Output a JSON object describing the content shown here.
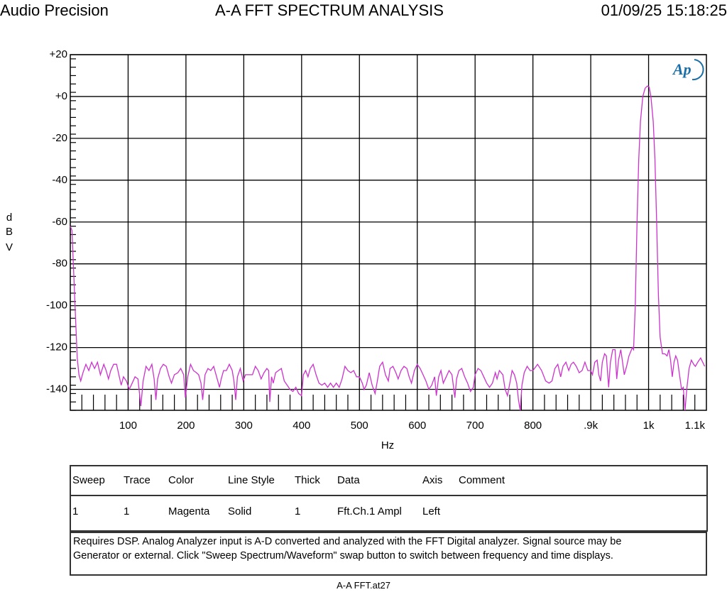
{
  "header": {
    "brand": "Audio Precision",
    "title": "A-A FFT SPECTRUM ANALYSIS",
    "timestamp": "01/09/25 15:18:25"
  },
  "logo_text": "Ap",
  "colors": {
    "trace": "#cc33cc",
    "grid": "#000000",
    "logo": "#1a6fa8"
  },
  "chart_data": {
    "type": "line",
    "title": "A-A FFT SPECTRUM ANALYSIS",
    "xlabel": "Hz",
    "ylabel": [
      "d",
      "B",
      "V"
    ],
    "xlim": [
      0,
      1100
    ],
    "ylim": [
      -150,
      20
    ],
    "grid": true,
    "x_ticks": [
      100,
      200,
      300,
      400,
      500,
      600,
      700,
      800,
      900,
      1000,
      1100
    ],
    "x_tick_labels": [
      "100",
      "200",
      "300",
      "400",
      "500",
      "600",
      "700",
      "800",
      ".9k",
      "1k",
      "1.1k"
    ],
    "y_ticks": [
      20,
      0,
      -20,
      -40,
      -60,
      -80,
      -100,
      -120,
      -140
    ],
    "y_tick_labels": [
      "+20",
      "+0",
      "-20",
      "-40",
      "-60",
      "-80",
      "-100",
      "-120",
      "-140"
    ],
    "series": [
      {
        "color": "Magenta",
        "points": [
          [
            0,
            -62
          ],
          [
            3,
            -64
          ],
          [
            6,
            -85
          ],
          [
            9,
            -105
          ],
          [
            12,
            -125
          ],
          [
            15,
            -133
          ],
          [
            18,
            -136
          ],
          [
            22,
            -132
          ],
          [
            27,
            -128
          ],
          [
            32,
            -131
          ],
          [
            37,
            -127
          ],
          [
            42,
            -130
          ],
          [
            47,
            -127
          ],
          [
            52,
            -133
          ],
          [
            58,
            -128
          ],
          [
            62,
            -131
          ],
          [
            66,
            -135
          ],
          [
            70,
            -131
          ],
          [
            75,
            -128
          ],
          [
            80,
            -128
          ],
          [
            84,
            -133
          ],
          [
            88,
            -138
          ],
          [
            92,
            -134
          ],
          [
            97,
            -136
          ],
          [
            102,
            -140
          ],
          [
            107,
            -137
          ],
          [
            112,
            -134
          ],
          [
            117,
            -135
          ],
          [
            122,
            -148
          ],
          [
            126,
            -136
          ],
          [
            131,
            -129
          ],
          [
            136,
            -131
          ],
          [
            141,
            -128
          ],
          [
            145,
            -135
          ],
          [
            148,
            -145
          ],
          [
            151,
            -135
          ],
          [
            156,
            -130
          ],
          [
            161,
            -128
          ],
          [
            166,
            -129
          ],
          [
            171,
            -134
          ],
          [
            175,
            -137
          ],
          [
            180,
            -133
          ],
          [
            186,
            -132
          ],
          [
            191,
            -130
          ],
          [
            196,
            -133
          ],
          [
            199,
            -144
          ],
          [
            203,
            -134
          ],
          [
            208,
            -128
          ],
          [
            213,
            -131
          ],
          [
            218,
            -132
          ],
          [
            222,
            -133
          ],
          [
            226,
            -137
          ],
          [
            229,
            -145
          ],
          [
            233,
            -133
          ],
          [
            238,
            -130
          ],
          [
            243,
            -131
          ],
          [
            248,
            -129
          ],
          [
            253,
            -134
          ],
          [
            258,
            -139
          ],
          [
            261,
            -135
          ],
          [
            265,
            -131
          ],
          [
            270,
            -131
          ],
          [
            275,
            -128
          ],
          [
            280,
            -131
          ],
          [
            283,
            -136
          ],
          [
            286,
            -145
          ],
          [
            289,
            -134
          ],
          [
            294,
            -130
          ],
          [
            299,
            -136
          ],
          [
            303,
            -133
          ],
          [
            309,
            -133
          ],
          [
            315,
            -133
          ],
          [
            320,
            -129
          ],
          [
            325,
            -131
          ],
          [
            330,
            -135
          ],
          [
            335,
            -132
          ],
          [
            340,
            -130
          ],
          [
            343,
            -131
          ],
          [
            345,
            -146
          ],
          [
            348,
            -134
          ],
          [
            351,
            -137
          ],
          [
            355,
            -132
          ],
          [
            360,
            -131
          ],
          [
            365,
            -130
          ],
          [
            370,
            -136
          ],
          [
            375,
            -138
          ],
          [
            380,
            -140
          ],
          [
            385,
            -141
          ],
          [
            390,
            -139
          ],
          [
            395,
            -142
          ],
          [
            400,
            -143
          ],
          [
            403,
            -133
          ],
          [
            407,
            -131
          ],
          [
            411,
            -134
          ],
          [
            415,
            -130
          ],
          [
            420,
            -128
          ],
          [
            425,
            -133
          ],
          [
            430,
            -137
          ],
          [
            435,
            -138
          ],
          [
            440,
            -137
          ],
          [
            445,
            -139
          ],
          [
            450,
            -137
          ],
          [
            455,
            -139
          ],
          [
            460,
            -137
          ],
          [
            465,
            -139
          ],
          [
            470,
            -135
          ],
          [
            475,
            -129
          ],
          [
            480,
            -131
          ],
          [
            485,
            -132
          ],
          [
            490,
            -131
          ],
          [
            495,
            -134
          ],
          [
            500,
            -134
          ],
          [
            505,
            -137
          ],
          [
            508,
            -140
          ],
          [
            512,
            -138
          ],
          [
            517,
            -132
          ],
          [
            522,
            -138
          ],
          [
            527,
            -142
          ],
          [
            531,
            -136
          ],
          [
            535,
            -129
          ],
          [
            540,
            -127
          ],
          [
            545,
            -133
          ],
          [
            550,
            -136
          ],
          [
            553,
            -130
          ],
          [
            558,
            -129
          ],
          [
            563,
            -132
          ],
          [
            567,
            -135
          ],
          [
            572,
            -131
          ],
          [
            577,
            -129
          ],
          [
            582,
            -130
          ],
          [
            586,
            -134
          ],
          [
            590,
            -137
          ],
          [
            595,
            -131
          ],
          [
            600,
            -128
          ],
          [
            605,
            -130
          ],
          [
            610,
            -133
          ],
          [
            615,
            -136
          ],
          [
            620,
            -140
          ],
          [
            625,
            -138
          ],
          [
            630,
            -134
          ],
          [
            633,
            -143
          ],
          [
            637,
            -134
          ],
          [
            641,
            -131
          ],
          [
            645,
            -137
          ],
          [
            650,
            -134
          ],
          [
            655,
            -131
          ],
          [
            660,
            -133
          ],
          [
            665,
            -144
          ],
          [
            668,
            -135
          ],
          [
            672,
            -131
          ],
          [
            677,
            -130
          ],
          [
            682,
            -134
          ],
          [
            687,
            -137
          ],
          [
            692,
            -141
          ],
          [
            697,
            -139
          ],
          [
            700,
            -133
          ],
          [
            705,
            -130
          ],
          [
            710,
            -131
          ],
          [
            715,
            -134
          ],
          [
            720,
            -137
          ],
          [
            725,
            -139
          ],
          [
            730,
            -137
          ],
          [
            735,
            -132
          ],
          [
            738,
            -135
          ],
          [
            742,
            -131
          ],
          [
            748,
            -133
          ],
          [
            752,
            -140
          ],
          [
            756,
            -143
          ],
          [
            760,
            -137
          ],
          [
            764,
            -131
          ],
          [
            768,
            -133
          ],
          [
            772,
            -137
          ],
          [
            775,
            -145
          ],
          [
            778,
            -150
          ],
          [
            781,
            -138
          ],
          [
            785,
            -132
          ],
          [
            790,
            -129
          ],
          [
            795,
            -131
          ],
          [
            800,
            -131
          ],
          [
            808,
            -128
          ],
          [
            815,
            -131
          ],
          [
            822,
            -136
          ],
          [
            828,
            -137
          ],
          [
            833,
            -136
          ],
          [
            838,
            -130
          ],
          [
            843,
            -128
          ],
          [
            848,
            -134
          ],
          [
            852,
            -129
          ],
          [
            857,
            -127
          ],
          [
            862,
            -131
          ],
          [
            866,
            -128
          ],
          [
            870,
            -127
          ],
          [
            875,
            -129
          ],
          [
            880,
            -132
          ],
          [
            885,
            -131
          ],
          [
            890,
            -127
          ],
          [
            895,
            -131
          ],
          [
            900,
            -131
          ],
          [
            903,
            -133
          ],
          [
            907,
            -127
          ],
          [
            911,
            -126
          ],
          [
            914,
            -133
          ],
          [
            917,
            -136
          ],
          [
            920,
            -127
          ],
          [
            924,
            -123
          ],
          [
            927,
            -124
          ],
          [
            931,
            -139
          ],
          [
            934,
            -127
          ],
          [
            938,
            -121
          ],
          [
            942,
            -121
          ],
          [
            945,
            -135
          ],
          [
            948,
            -126
          ],
          [
            952,
            -121
          ],
          [
            955,
            -127
          ],
          [
            958,
            -133
          ],
          [
            962,
            -129
          ],
          [
            966,
            -124
          ],
          [
            969,
            -122
          ],
          [
            972,
            -120
          ],
          [
            974,
            -121
          ],
          [
            977,
            -100
          ],
          [
            980,
            -60
          ],
          [
            983,
            -30
          ],
          [
            986,
            -12
          ],
          [
            990,
            0
          ],
          [
            994,
            4
          ],
          [
            998,
            5
          ],
          [
            1001,
            4.5
          ],
          [
            1004,
            0
          ],
          [
            1008,
            -12
          ],
          [
            1011,
            -30
          ],
          [
            1014,
            -60
          ],
          [
            1017,
            -95
          ],
          [
            1020,
            -115
          ],
          [
            1024,
            -123
          ],
          [
            1028,
            -123
          ],
          [
            1032,
            -124
          ],
          [
            1035,
            -121
          ],
          [
            1038,
            -126
          ],
          [
            1041,
            -134
          ],
          [
            1044,
            -127
          ],
          [
            1047,
            -124
          ],
          [
            1050,
            -126
          ],
          [
            1053,
            -132
          ],
          [
            1057,
            -140
          ],
          [
            1060,
            -139
          ],
          [
            1063,
            -150
          ],
          [
            1066,
            -140
          ],
          [
            1070,
            -130
          ],
          [
            1074,
            -126
          ],
          [
            1078,
            -128
          ],
          [
            1081,
            -129
          ],
          [
            1085,
            -127
          ],
          [
            1090,
            -125
          ],
          [
            1097,
            -129
          ]
        ]
      }
    ]
  },
  "legend_table": {
    "headers": [
      "Sweep",
      "Trace",
      "Color",
      "Line Style",
      "Thick",
      "Data",
      "Axis",
      "Comment"
    ],
    "row": [
      "1",
      "1",
      "Magenta",
      "Solid",
      "1",
      "Fft.Ch.1 Ampl",
      "Left",
      ""
    ]
  },
  "note": {
    "line1": "Requires DSP.  Analog Analyzer input is A-D converted and analyzed with the FFT Digital analyzer.  Signal source may be",
    "line2": "Generator or external.  Click \"Sweep Spectrum/Waveform\" swap button to switch between frequency and time displays."
  },
  "footer_filename": "A-A FFT.at27"
}
